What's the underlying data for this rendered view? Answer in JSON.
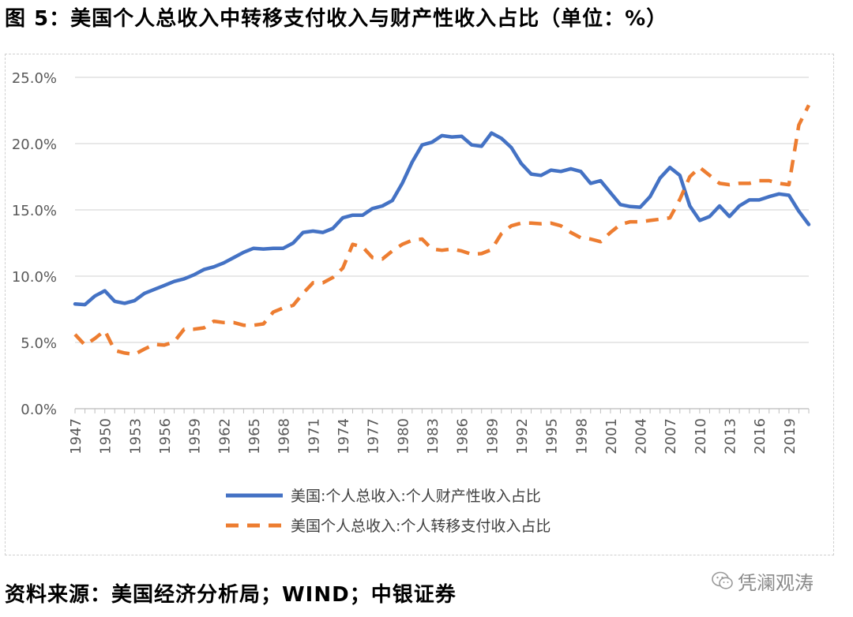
{
  "figure": {
    "title": "图 5：美国个人总收入中转移支付收入与财产性收入占比（单位：%）",
    "source": "资料来源：美国经济分析局；WIND；中银证券",
    "watermark": "凭澜观涛"
  },
  "chart_data": {
    "type": "line",
    "title": "",
    "xlabel": "",
    "ylabel": "",
    "ylim": [
      0,
      25
    ],
    "y_ticks": [
      "0.0%",
      "5.0%",
      "10.0%",
      "15.0%",
      "20.0%",
      "25.0%"
    ],
    "x_ticks": [
      "1947",
      "1950",
      "1953",
      "1956",
      "1959",
      "1962",
      "1965",
      "1968",
      "1971",
      "1974",
      "1977",
      "1980",
      "1983",
      "1986",
      "1989",
      "1992",
      "1995",
      "1998",
      "2001",
      "2004",
      "2007",
      "2010",
      "2013",
      "2016",
      "2019"
    ],
    "grid": true,
    "legend_position": "bottom",
    "x": [
      1947,
      1948,
      1949,
      1950,
      1951,
      1952,
      1953,
      1954,
      1955,
      1956,
      1957,
      1958,
      1959,
      1960,
      1961,
      1962,
      1963,
      1964,
      1965,
      1966,
      1967,
      1968,
      1969,
      1970,
      1971,
      1972,
      1973,
      1974,
      1975,
      1976,
      1977,
      1978,
      1979,
      1980,
      1981,
      1982,
      1983,
      1984,
      1985,
      1986,
      1987,
      1988,
      1989,
      1990,
      1991,
      1992,
      1993,
      1994,
      1995,
      1996,
      1997,
      1998,
      1999,
      2000,
      2001,
      2002,
      2003,
      2004,
      2005,
      2006,
      2007,
      2008,
      2009,
      2010,
      2011,
      2012,
      2013,
      2014,
      2015,
      2016,
      2017,
      2018,
      2019,
      2020,
      2021
    ],
    "series": [
      {
        "name": "美国:个人总收入:个人财产性收入占比",
        "color": "#4472C4",
        "style": "solid",
        "values": [
          7.9,
          7.85,
          8.5,
          8.9,
          8.1,
          7.95,
          8.15,
          8.7,
          9.0,
          9.3,
          9.6,
          9.8,
          10.1,
          10.5,
          10.7,
          11.0,
          11.4,
          11.8,
          12.1,
          12.05,
          12.1,
          12.1,
          12.5,
          13.3,
          13.4,
          13.3,
          13.6,
          14.4,
          14.6,
          14.6,
          15.1,
          15.3,
          15.7,
          17.0,
          18.6,
          19.9,
          20.1,
          20.6,
          20.5,
          20.55,
          19.9,
          19.8,
          20.8,
          20.4,
          19.7,
          18.5,
          17.7,
          17.6,
          18.0,
          17.9,
          18.1,
          17.9,
          17.0,
          17.2,
          16.3,
          15.4,
          15.25,
          15.2,
          16.0,
          17.4,
          18.2,
          17.6,
          15.3,
          14.2,
          14.5,
          15.3,
          14.5,
          15.3,
          15.75,
          15.75,
          16.0,
          16.2,
          16.1,
          14.9,
          13.9
        ]
      },
      {
        "name": "美国个人总收入:个人转移支付收入占比",
        "color": "#ED7D31",
        "style": "dashed",
        "values": [
          5.6,
          4.8,
          5.3,
          5.9,
          4.4,
          4.2,
          4.1,
          4.5,
          4.85,
          4.8,
          5.05,
          6.0,
          6.0,
          6.1,
          6.6,
          6.5,
          6.5,
          6.3,
          6.3,
          6.4,
          7.3,
          7.6,
          7.8,
          8.7,
          9.5,
          9.5,
          9.9,
          10.6,
          12.4,
          12.2,
          11.4,
          11.3,
          11.9,
          12.4,
          12.7,
          12.8,
          12.05,
          11.95,
          12.05,
          11.9,
          11.65,
          11.7,
          12.0,
          13.2,
          13.8,
          14.0,
          14.0,
          13.95,
          14.0,
          13.8,
          13.3,
          12.9,
          12.8,
          12.6,
          13.3,
          13.9,
          14.1,
          14.1,
          14.2,
          14.3,
          14.4,
          15.8,
          17.5,
          18.2,
          17.6,
          17.0,
          16.9,
          17.0,
          17.0,
          17.2,
          17.2,
          17.0,
          16.9,
          21.4,
          22.9
        ]
      }
    ]
  }
}
